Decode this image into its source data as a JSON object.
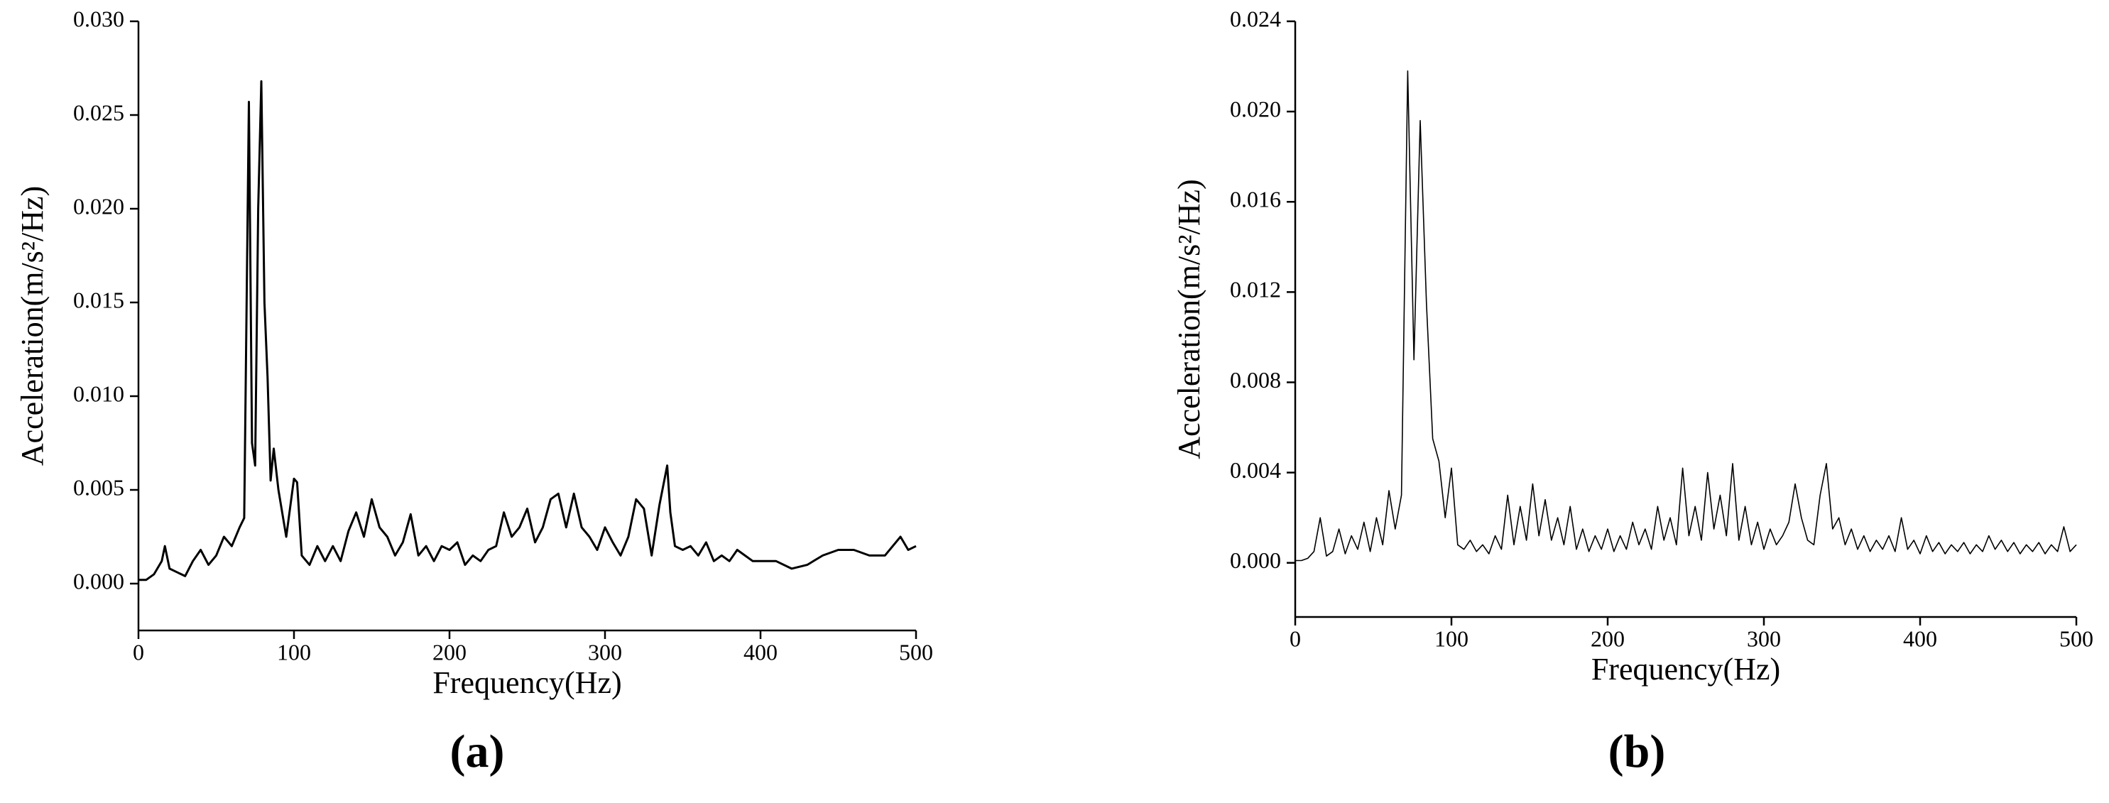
{
  "chart_data": [
    {
      "type": "line",
      "panel_label": "(a)",
      "xlabel": "Frequency(Hz)",
      "ylabel": "Acceleration(m/s²/Hz)",
      "color": "#000000",
      "xlim": [
        0,
        500
      ],
      "xticks": [
        0,
        100,
        200,
        300,
        400,
        500
      ],
      "ylim": [
        -0.0025,
        0.03
      ],
      "yticks": [
        {
          "value": 0,
          "label": "0.000"
        },
        {
          "value": 0.005,
          "label": "0.005"
        },
        {
          "value": 0.01,
          "label": "0.010"
        },
        {
          "value": 0.015,
          "label": "0.015"
        },
        {
          "value": 0.02,
          "label": "0.020"
        },
        {
          "value": 0.025,
          "label": "0.025"
        },
        {
          "value": 0.03,
          "label": "0.030"
        }
      ],
      "x": [
        0,
        5,
        10,
        15,
        17,
        20,
        25,
        30,
        35,
        40,
        45,
        50,
        55,
        60,
        65,
        68,
        71,
        73,
        75,
        77,
        79,
        81,
        83,
        85,
        87,
        90,
        95,
        100,
        102,
        105,
        110,
        115,
        120,
        125,
        130,
        135,
        140,
        145,
        150,
        155,
        160,
        165,
        170,
        175,
        180,
        185,
        190,
        195,
        200,
        205,
        210,
        215,
        220,
        225,
        230,
        235,
        240,
        245,
        250,
        255,
        260,
        265,
        270,
        275,
        280,
        285,
        290,
        295,
        300,
        305,
        310,
        315,
        320,
        325,
        330,
        335,
        340,
        342,
        345,
        350,
        355,
        360,
        365,
        370,
        375,
        380,
        385,
        390,
        395,
        400,
        410,
        420,
        430,
        440,
        450,
        460,
        470,
        480,
        490,
        495,
        500
      ],
      "values": [
        0.0002,
        0.0002,
        0.0005,
        0.0012,
        0.002,
        0.0008,
        0.0006,
        0.0004,
        0.0012,
        0.0018,
        0.001,
        0.0015,
        0.0025,
        0.002,
        0.003,
        0.0035,
        0.0257,
        0.0075,
        0.0063,
        0.02,
        0.0268,
        0.015,
        0.011,
        0.0055,
        0.0072,
        0.005,
        0.0025,
        0.0056,
        0.0054,
        0.0015,
        0.001,
        0.002,
        0.0012,
        0.002,
        0.0012,
        0.0028,
        0.0038,
        0.0025,
        0.0045,
        0.003,
        0.0025,
        0.0015,
        0.0022,
        0.0037,
        0.0015,
        0.002,
        0.0012,
        0.002,
        0.0018,
        0.0022,
        0.001,
        0.0015,
        0.0012,
        0.0018,
        0.002,
        0.0038,
        0.0025,
        0.003,
        0.004,
        0.0022,
        0.003,
        0.0045,
        0.0048,
        0.003,
        0.0048,
        0.003,
        0.0025,
        0.0018,
        0.003,
        0.0022,
        0.0015,
        0.0025,
        0.0045,
        0.004,
        0.0015,
        0.0042,
        0.0063,
        0.0038,
        0.002,
        0.0018,
        0.002,
        0.0015,
        0.0022,
        0.0012,
        0.0015,
        0.0012,
        0.0018,
        0.0015,
        0.0012,
        0.0012,
        0.0012,
        0.0008,
        0.001,
        0.0015,
        0.0018,
        0.0018,
        0.0015,
        0.0015,
        0.0025,
        0.0018,
        0.002
      ]
    },
    {
      "type": "line",
      "panel_label": "(b)",
      "xlabel": "Frequency(Hz)",
      "ylabel": "Acceleration(m/s²/Hz)",
      "color": "#000000",
      "xlim": [
        0,
        500
      ],
      "xticks": [
        0,
        100,
        200,
        300,
        400,
        500
      ],
      "ylim": [
        -0.0024,
        0.024
      ],
      "yticks": [
        {
          "value": 0,
          "label": "0.000"
        },
        {
          "value": 0.004,
          "label": "0.004"
        },
        {
          "value": 0.008,
          "label": "0.008"
        },
        {
          "value": 0.012,
          "label": "0.012"
        },
        {
          "value": 0.016,
          "label": "0.016"
        },
        {
          "value": 0.02,
          "label": "0.020"
        },
        {
          "value": 0.024,
          "label": "0.024"
        }
      ],
      "x": [
        0,
        4,
        8,
        12,
        16,
        20,
        24,
        28,
        32,
        36,
        40,
        44,
        48,
        52,
        56,
        60,
        64,
        68,
        72,
        76,
        80,
        84,
        88,
        92,
        96,
        100,
        104,
        108,
        112,
        116,
        120,
        124,
        128,
        132,
        136,
        140,
        144,
        148,
        152,
        156,
        160,
        164,
        168,
        172,
        176,
        180,
        184,
        188,
        192,
        196,
        200,
        204,
        208,
        212,
        216,
        220,
        224,
        228,
        232,
        236,
        240,
        244,
        248,
        252,
        256,
        260,
        264,
        268,
        272,
        276,
        280,
        284,
        288,
        292,
        296,
        300,
        304,
        308,
        312,
        316,
        320,
        324,
        328,
        332,
        336,
        340,
        344,
        348,
        352,
        356,
        360,
        364,
        368,
        372,
        376,
        380,
        384,
        388,
        392,
        396,
        400,
        404,
        408,
        412,
        416,
        420,
        424,
        428,
        432,
        436,
        440,
        444,
        448,
        452,
        456,
        460,
        464,
        468,
        472,
        476,
        480,
        484,
        488,
        492,
        496,
        500
      ],
      "values": [
        0.0001,
        0.0001,
        0.0002,
        0.0005,
        0.002,
        0.0003,
        0.0005,
        0.0015,
        0.0004,
        0.0012,
        0.0006,
        0.0018,
        0.0005,
        0.002,
        0.0008,
        0.0032,
        0.0015,
        0.003,
        0.0218,
        0.009,
        0.0196,
        0.0115,
        0.0055,
        0.0045,
        0.002,
        0.0042,
        0.0008,
        0.0006,
        0.001,
        0.0005,
        0.0008,
        0.0004,
        0.0012,
        0.0006,
        0.003,
        0.0008,
        0.0025,
        0.001,
        0.0035,
        0.0012,
        0.0028,
        0.001,
        0.002,
        0.0008,
        0.0025,
        0.0006,
        0.0015,
        0.0005,
        0.0012,
        0.0006,
        0.0015,
        0.0005,
        0.0012,
        0.0006,
        0.0018,
        0.0008,
        0.0015,
        0.0006,
        0.0025,
        0.001,
        0.002,
        0.0008,
        0.0042,
        0.0012,
        0.0025,
        0.001,
        0.004,
        0.0015,
        0.003,
        0.0012,
        0.0044,
        0.001,
        0.0025,
        0.0008,
        0.0018,
        0.0006,
        0.0015,
        0.0008,
        0.0012,
        0.0018,
        0.0035,
        0.002,
        0.001,
        0.0008,
        0.003,
        0.0044,
        0.0015,
        0.002,
        0.0008,
        0.0015,
        0.0006,
        0.0012,
        0.0005,
        0.001,
        0.0006,
        0.0012,
        0.0005,
        0.002,
        0.0006,
        0.001,
        0.0004,
        0.0012,
        0.0005,
        0.0009,
        0.0004,
        0.0008,
        0.0005,
        0.0009,
        0.0004,
        0.0008,
        0.0005,
        0.0012,
        0.0006,
        0.001,
        0.0005,
        0.0009,
        0.0004,
        0.0008,
        0.0005,
        0.0009,
        0.0004,
        0.0008,
        0.0005,
        0.0016,
        0.0005,
        0.0008
      ]
    }
  ]
}
